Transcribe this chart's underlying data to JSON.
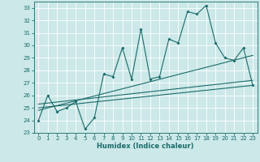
{
  "title": "",
  "xlabel": "Humidex (Indice chaleur)",
  "bg_color": "#cce8e8",
  "grid_color": "#ffffff",
  "line_color": "#1a6b6b",
  "xlim": [
    -0.5,
    23.5
  ],
  "ylim": [
    23,
    33.5
  ],
  "yticks": [
    23,
    24,
    25,
    26,
    27,
    28,
    29,
    30,
    31,
    32,
    33
  ],
  "xticks": [
    0,
    1,
    2,
    3,
    4,
    5,
    6,
    7,
    8,
    9,
    10,
    11,
    12,
    13,
    14,
    15,
    16,
    17,
    18,
    19,
    20,
    21,
    22,
    23
  ],
  "series1": [
    24.0,
    26.0,
    24.7,
    25.0,
    25.5,
    23.3,
    24.2,
    27.7,
    27.5,
    29.8,
    27.3,
    31.3,
    27.3,
    27.5,
    30.5,
    30.2,
    32.7,
    32.5,
    33.2,
    30.2,
    29.0,
    28.8,
    29.8,
    26.8
  ],
  "trend1_x": [
    0,
    23
  ],
  "trend1_y": [
    24.8,
    29.2
  ],
  "trend2_x": [
    0,
    23
  ],
  "trend2_y": [
    25.3,
    27.2
  ],
  "trend3_x": [
    0,
    23
  ],
  "trend3_y": [
    25.0,
    26.8
  ],
  "xlabel_fontsize": 6.0,
  "tick_fontsize": 5.0,
  "linewidth": 0.8,
  "markersize": 2.0
}
